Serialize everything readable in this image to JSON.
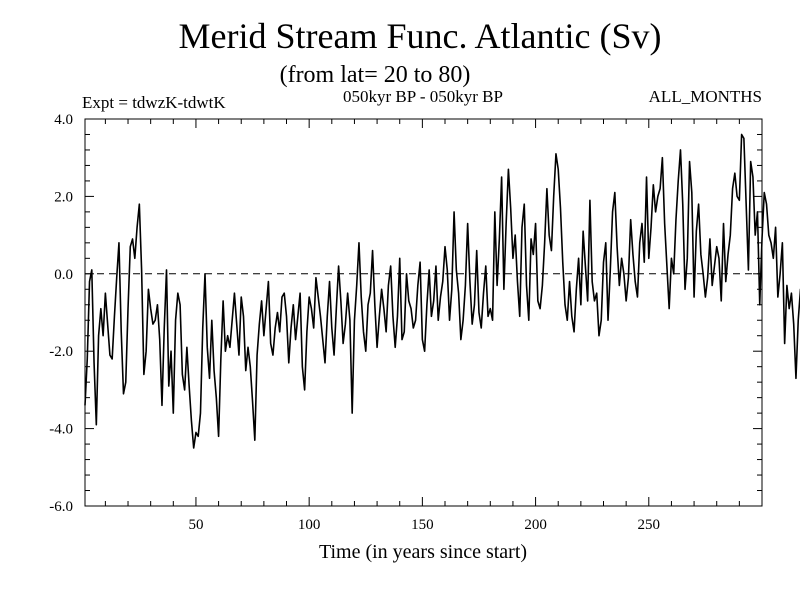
{
  "chart_data": {
    "type": "line",
    "title": "Merid Stream Func. Atlantic (Sv)",
    "subtitle": "(from lat= 20 to 80)",
    "header_left": "Expt = tdwzK-tdwtK",
    "header_center": "050kyr BP - 050kyr BP",
    "header_right": "ALL_MONTHS",
    "xlabel": "Time (in years since start)",
    "ylabel": "",
    "xlim": [
      1,
      300
    ],
    "ylim": [
      -6.0,
      4.0
    ],
    "x_ticks": [
      50,
      100,
      150,
      200,
      250
    ],
    "x_tick_labels": [
      "50",
      "100",
      "150",
      "200",
      "250"
    ],
    "y_ticks": [
      -6.0,
      -4.0,
      -2.0,
      0.0,
      2.0,
      4.0
    ],
    "y_tick_labels": [
      "-6.0",
      "-4.0",
      "-2.0",
      "0.0",
      "2.0",
      "4.0"
    ],
    "zero_line": "dashed",
    "grid": false,
    "colors": {
      "line": "#000000",
      "axis": "#000000"
    },
    "series": [
      {
        "x_start": 1,
        "x_step": 1,
        "values": [
          -3.4,
          -2.2,
          -0.2,
          0.1,
          -2.3,
          -3.9,
          -1.6,
          -0.9,
          -1.6,
          -0.5,
          -1.3,
          -2.1,
          -2.2,
          -1.1,
          -0.1,
          0.8,
          -1.5,
          -3.1,
          -2.8,
          -0.9,
          0.7,
          0.9,
          0.4,
          1.2,
          1.8,
          0.1,
          -2.6,
          -2.0,
          -0.4,
          -0.9,
          -1.3,
          -1.2,
          -0.8,
          -1.7,
          -3.4,
          -1.4,
          0.1,
          -2.9,
          -2.0,
          -3.6,
          -1.2,
          -0.5,
          -0.8,
          -2.6,
          -3.0,
          -1.9,
          -2.9,
          -3.8,
          -4.5,
          -4.1,
          -4.2,
          -3.6,
          -1.4,
          0.0,
          -1.9,
          -2.7,
          -1.2,
          -2.5,
          -3.2,
          -4.2,
          -2.2,
          -0.7,
          -2.0,
          -1.6,
          -1.9,
          -1.2,
          -0.5,
          -1.3,
          -2.1,
          -0.6,
          -1.1,
          -2.5,
          -1.9,
          -2.4,
          -3.3,
          -4.3,
          -2.1,
          -1.3,
          -0.7,
          -1.6,
          -0.9,
          -0.2,
          -1.8,
          -2.1,
          -1.4,
          -1.0,
          -1.5,
          -0.6,
          -0.5,
          -1.1,
          -2.3,
          -1.4,
          -0.8,
          -1.7,
          -1.1,
          -0.5,
          -2.4,
          -3.0,
          -1.5,
          -0.6,
          -0.9,
          -1.4,
          -0.1,
          -0.6,
          -1.1,
          -1.7,
          -2.3,
          -1.1,
          -0.2,
          -1.4,
          -2.1,
          -0.9,
          0.2,
          -0.7,
          -1.8,
          -1.3,
          -0.5,
          -1.2,
          -3.6,
          -1.2,
          -0.3,
          0.8,
          -0.6,
          -1.5,
          -2.0,
          -0.8,
          -0.5,
          0.6,
          -0.8,
          -1.9,
          -1.1,
          -0.4,
          -0.9,
          -1.5,
          -0.3,
          0.2,
          -1.1,
          -1.9,
          -1.1,
          0.4,
          -1.7,
          -1.5,
          0.0,
          -0.7,
          -0.9,
          -1.4,
          -1.2,
          -0.3,
          0.3,
          -1.7,
          -2.0,
          -0.8,
          0.1,
          -1.1,
          -0.7,
          0.2,
          -1.2,
          -0.6,
          -0.2,
          0.7,
          0.1,
          -1.2,
          -0.4,
          1.6,
          0.1,
          -0.5,
          -1.7,
          -1.2,
          -0.3,
          1.3,
          -0.2,
          -1.3,
          -0.8,
          0.6,
          -1.0,
          -1.4,
          -0.5,
          0.2,
          -1.1,
          -0.9,
          -1.2,
          1.6,
          -0.3,
          0.9,
          2.5,
          -0.4,
          1.3,
          2.7,
          1.7,
          0.4,
          1.0,
          -0.2,
          -1.1,
          1.2,
          1.8,
          -0.3,
          -1.2,
          0.9,
          0.5,
          1.3,
          -0.7,
          -0.9,
          -0.3,
          0.8,
          2.2,
          1.0,
          0.6,
          2.0,
          3.1,
          2.7,
          1.7,
          0.3,
          -0.8,
          -1.2,
          -0.2,
          -1.1,
          -1.5,
          -0.4,
          0.4,
          -0.8,
          1.1,
          0.2,
          -0.7,
          1.9,
          -0.2,
          -0.7,
          -0.5,
          -1.6,
          -1.2,
          0.3,
          0.8,
          -1.2,
          0.1,
          1.6,
          2.1,
          0.7,
          -0.3,
          0.4,
          0.0,
          -0.7,
          -0.1,
          1.4,
          0.5,
          -0.2,
          -0.6,
          0.8,
          1.3,
          0.3,
          2.5,
          0.4,
          1.2,
          2.3,
          1.6,
          2.0,
          2.2,
          3.0,
          1.3,
          0.2,
          -0.9,
          0.4,
          0.0,
          1.4,
          2.4,
          3.2,
          1.8,
          -0.4,
          0.4,
          2.9,
          2.1,
          -0.6,
          1.1,
          1.8,
          0.5,
          0.0,
          -0.6,
          -0.1,
          0.9,
          -0.3,
          0.2,
          0.7,
          0.4,
          -0.7,
          1.3,
          -0.2,
          0.5,
          1.0,
          2.2,
          2.6,
          2.0,
          1.9,
          3.6,
          3.5,
          1.8,
          0.1,
          2.9,
          2.5,
          1.0,
          1.6,
          -0.8,
          0.9,
          2.1,
          1.8,
          1.0,
          0.8,
          0.4,
          1.2,
          -0.6,
          0.0,
          0.8,
          -1.8,
          -0.3,
          -0.9,
          -0.5,
          -1.3,
          -2.7,
          -1.2,
          -0.4,
          -1.2,
          -1.9,
          -1.1,
          -1.6,
          -2.5,
          -1.3,
          -0.7,
          0.4,
          -1.4,
          -1.1,
          -2.1,
          -0.3,
          -0.8,
          -0.5,
          0.6,
          -1.2,
          -2.3,
          -0.8,
          0.3,
          -1.0,
          -2.2,
          -1.4,
          -0.6,
          0.4,
          -1.1,
          -1.5,
          0.8,
          -0.1,
          -0.7,
          -0.9,
          0.0,
          -1.6,
          -0.3,
          0.5,
          -0.2,
          1.1,
          -0.4,
          0.1,
          -0.9,
          -0.5,
          0.4,
          -0.6,
          -0.2,
          0.9,
          0.7,
          0.5,
          0.2,
          -0.6,
          -0.5,
          0.4,
          0.0,
          -1.2,
          -1.8,
          -1.9,
          -1.5,
          -1.8,
          -0.3,
          -0.6,
          -1.3,
          -2.6,
          -2.5,
          -2.8,
          -1.4,
          -2.2,
          -1.7,
          -3.4,
          -2.6,
          -1.9,
          -1.6,
          -2.8,
          -1.8,
          -0.9,
          -1.3,
          -1.5,
          -0.7,
          -1.7,
          -0.9,
          -0.6,
          0.3,
          -0.7,
          -0.1,
          -1.1,
          -1.8,
          0.3,
          -0.4,
          0.1,
          -0.6,
          -0.9,
          -0.8,
          0.2,
          0.0,
          -0.7,
          -0.6,
          -1.8,
          -1.4,
          -1.0,
          -1.2,
          -0.8,
          -2.2,
          -2.5,
          -2.6,
          -1.5,
          -2.1,
          -2.9,
          -2.3,
          -2.4,
          -2.3,
          -1.8,
          -1.9,
          -0.8,
          -1.3,
          -2.7,
          -3.3,
          -2.5,
          -2.3,
          -2.4,
          -2.3,
          -0.2,
          -1.0,
          -1.9,
          -1.4,
          -0.5,
          -1.3,
          -0.9,
          0.3,
          -0.4,
          -1.2,
          -1.7,
          -0.8,
          1.1,
          -0.2,
          -1.2,
          -0.9,
          -0.4,
          -0.8,
          -1.6,
          -0.6,
          0.4,
          -0.3,
          0.9,
          1.7,
          1.1,
          0.3,
          1.4,
          2.2,
          1.1,
          0.6,
          1.2,
          2.0,
          1.5,
          0.7,
          0.3,
          1.4,
          2.0,
          2.9,
          2.1,
          1.4,
          2.5,
          0.8,
          1.6,
          0.4,
          -0.6,
          -0.4,
          0.7,
          1.2,
          -0.4,
          -0.6,
          -0.4,
          1.2,
          2.2,
          3.0,
          1.4,
          0.7,
          1.3,
          1.9,
          0.3,
          1.6,
          2.4,
          1.0,
          1.4,
          1.6,
          2.0,
          1.1,
          0.4,
          -0.3,
          -0.1,
          -0.6,
          0.8,
          1.5,
          1.8,
          0.6,
          1.1,
          0.7,
          1.1,
          0.3,
          -0.6,
          0.4,
          0.0,
          -0.9,
          0.6,
          1.4,
          1.0,
          0.7,
          0.5,
          0.4,
          -0.8,
          -1.7,
          -0.9,
          -0.6,
          -0.4,
          -1.3
        ]
      }
    ]
  }
}
